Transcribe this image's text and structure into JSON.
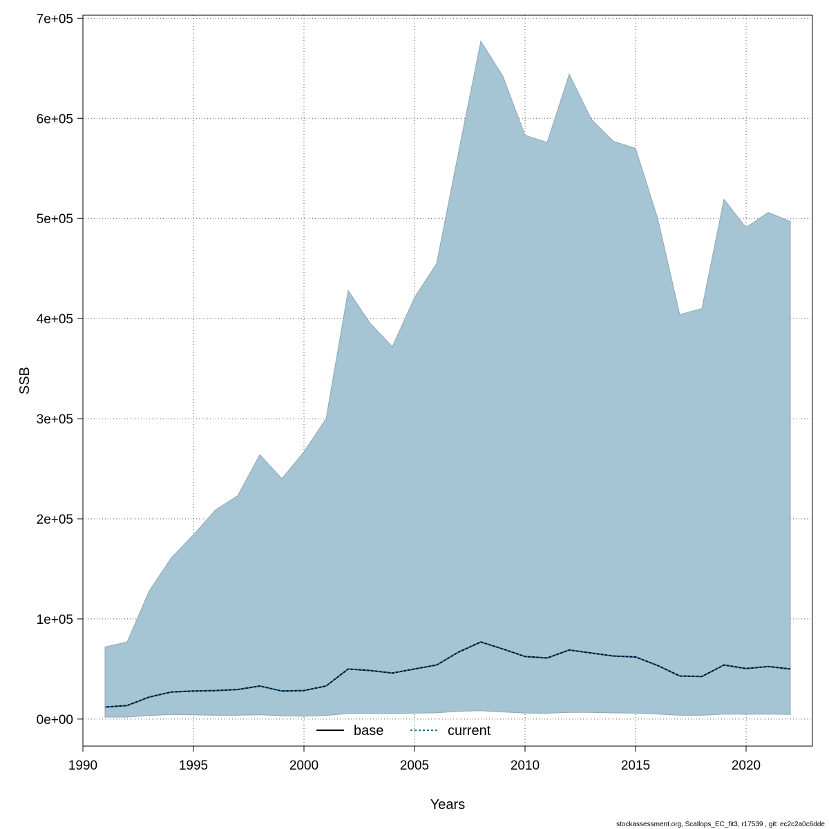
{
  "chart_data": {
    "type": "area",
    "xlabel": "Years",
    "ylabel": "SSB",
    "xlim": [
      1990,
      2023
    ],
    "ylim": [
      -27000,
      703000
    ],
    "x_ticks": [
      1990,
      1995,
      2000,
      2005,
      2010,
      2015,
      2020
    ],
    "x_tick_labels": [
      "1990",
      "1995",
      "2000",
      "2005",
      "2010",
      "2015",
      "2020"
    ],
    "y_ticks": [
      0,
      100000,
      200000,
      300000,
      400000,
      500000,
      600000,
      700000
    ],
    "y_tick_labels": [
      "0e+00",
      "1e+05",
      "2e+05",
      "3e+05",
      "4e+05",
      "5e+05",
      "6e+05",
      "7e+05"
    ],
    "grid": true,
    "legend_position": "bottom-center",
    "x": [
      1991,
      1992,
      1993,
      1994,
      1995,
      1996,
      1997,
      1998,
      1999,
      2000,
      2001,
      2002,
      2003,
      2004,
      2005,
      2006,
      2007,
      2008,
      2009,
      2010,
      2011,
      2012,
      2013,
      2014,
      2015,
      2016,
      2017,
      2018,
      2019,
      2020,
      2021,
      2022
    ],
    "band": {
      "color": "#a5c4d4",
      "upper": [
        72000,
        77000,
        128000,
        161000,
        184000,
        209000,
        223000,
        264000,
        240000,
        267000,
        300000,
        428000,
        395000,
        372000,
        421000,
        455000,
        567000,
        677000,
        642000,
        583000,
        576000,
        644000,
        599000,
        577000,
        570000,
        500000,
        404000,
        410000,
        519000,
        491000,
        506000,
        497000
      ],
      "lower": [
        2000,
        2000,
        3500,
        4500,
        4200,
        3800,
        3800,
        4300,
        3300,
        2800,
        3600,
        5500,
        5800,
        5500,
        6000,
        6200,
        7800,
        8300,
        7100,
        6000,
        5800,
        6700,
        6600,
        6100,
        6000,
        5000,
        3800,
        3800,
        5000,
        4800,
        5000,
        4500
      ]
    },
    "series": [
      {
        "name": "base",
        "color": "#000000",
        "dash": "solid",
        "values": [
          12000,
          13500,
          22000,
          27000,
          28000,
          28500,
          29500,
          33000,
          28000,
          28500,
          33000,
          50000,
          48500,
          46000,
          50000,
          54000,
          67000,
          77000,
          70000,
          62500,
          61000,
          69000,
          66000,
          63000,
          62000,
          53500,
          43000,
          42500,
          54000,
          50500,
          52500,
          50000
        ]
      },
      {
        "name": "current",
        "color": "#1f6e9e",
        "dash": "dashed",
        "values": [
          12000,
          13500,
          22000,
          27000,
          28000,
          28500,
          29500,
          33000,
          28000,
          28500,
          33000,
          50000,
          48500,
          46000,
          50000,
          54000,
          67000,
          77000,
          70000,
          62500,
          61000,
          69000,
          66000,
          63000,
          62000,
          53500,
          43000,
          42500,
          54000,
          50500,
          52500,
          50000
        ]
      }
    ],
    "legend": [
      {
        "label": "base",
        "color": "#000000",
        "dash": "solid"
      },
      {
        "label": "current",
        "color": "#1f6e9e",
        "dash": "dashed"
      }
    ]
  },
  "footer": "stockassessment.org, Scallops_EC_fit3, r17539 , git: ec2c2a0c6dde"
}
